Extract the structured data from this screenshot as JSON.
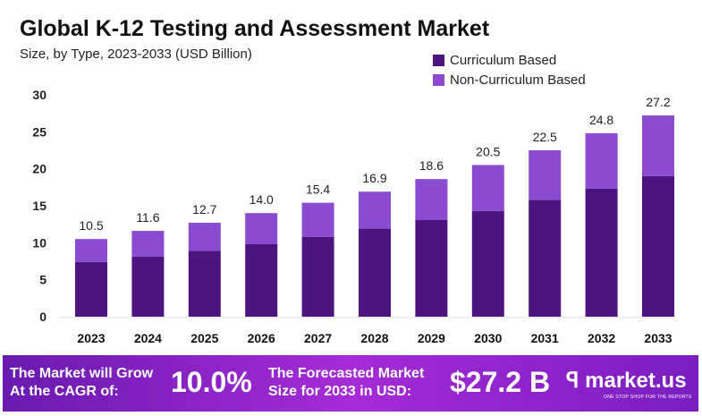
{
  "chart_data": {
    "type": "bar",
    "stacked": true,
    "title": "Global K-12 Testing and Assessment Market",
    "subtitle": "Size, by Type, 2023-2033 (USD Billion)",
    "categories": [
      "2023",
      "2024",
      "2025",
      "2026",
      "2027",
      "2028",
      "2029",
      "2030",
      "2031",
      "2032",
      "2033"
    ],
    "series": [
      {
        "name": "Curriculum Based",
        "color": "#4d1480",
        "values": [
          7.4,
          8.1,
          8.9,
          9.8,
          10.8,
          11.9,
          13.1,
          14.3,
          15.8,
          17.3,
          19.0
        ]
      },
      {
        "name": "Non-Curriculum Based",
        "color": "#8a4bd0",
        "values": [
          3.1,
          3.5,
          3.8,
          4.2,
          4.6,
          5.0,
          5.5,
          6.2,
          6.7,
          7.5,
          8.2
        ]
      }
    ],
    "totals": [
      "10.5",
      "11.6",
      "12.7",
      "14.0",
      "15.4",
      "16.9",
      "18.6",
      "20.5",
      "22.5",
      "24.8",
      "27.2"
    ],
    "ylim": [
      0,
      30
    ],
    "yticks": [
      "0",
      "5",
      "10",
      "15",
      "20",
      "25",
      "30"
    ],
    "grid": false,
    "legend": "top-right"
  },
  "footer": {
    "cagr_label_1": "The Market will Grow",
    "cagr_label_2": "At the CAGR of:",
    "cagr_value": "10.0%",
    "forecast_label_1": "The Forecasted Market",
    "forecast_label_2": "Size for 2033 in USD:",
    "forecast_value": "$27.2 B",
    "logo": "market.us",
    "tagline": "ONE STOP SHOP FOR THE REPORTS"
  }
}
